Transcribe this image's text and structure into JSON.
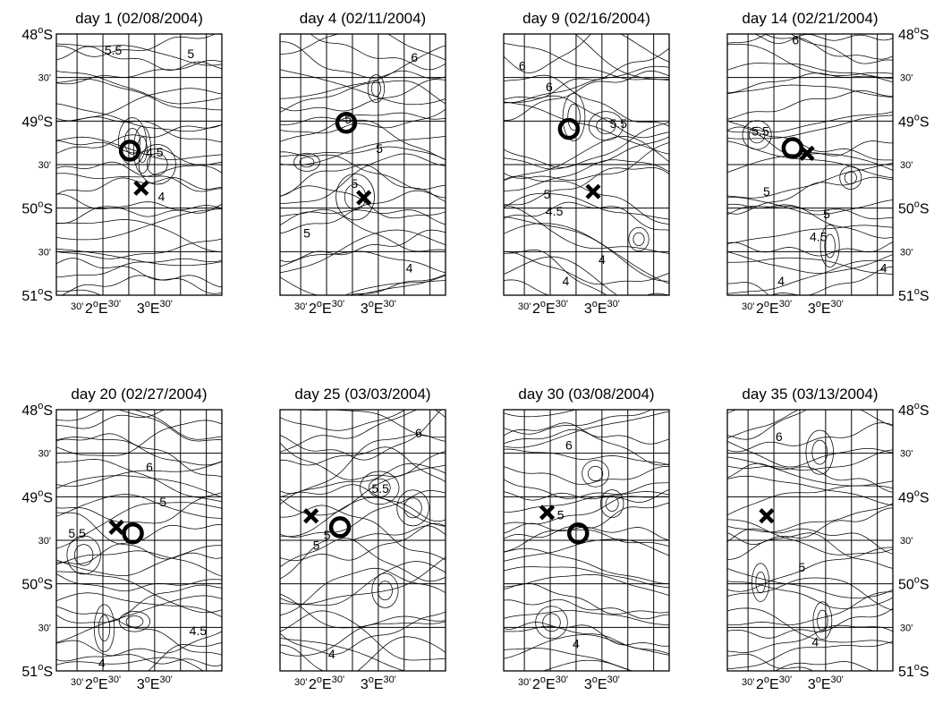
{
  "lat_labels": {
    "t48": "48",
    "m1": "30'",
    "t49": "49",
    "m2": "30'",
    "t50": "50",
    "m3": "30'",
    "t51": "51",
    "deg": "o",
    "hemi": "S"
  },
  "lon_labels": {
    "m1": "30'",
    "d2": "2",
    "deg": "o",
    "E": "E",
    "m2": "30'",
    "d3": "3",
    "m3": "30'"
  },
  "panels": [
    {
      "title": "day 1 (02/08/2004)",
      "circle": [
        2.52,
        -49.34
      ],
      "cross": [
        2.74,
        -49.77
      ],
      "labels": [
        {
          "text": "5.5",
          "pos": [
            2.2,
            -48.2
          ]
        },
        {
          "text": "5",
          "pos": [
            3.7,
            -48.24
          ]
        },
        {
          "text": "4.5",
          "pos": [
            3.0,
            -49.37
          ]
        },
        {
          "text": "4",
          "pos": [
            3.13,
            -49.88
          ]
        }
      ]
    },
    {
      "title": "day 4 (02/11/2004)",
      "circle": [
        2.38,
        -49.02
      ],
      "cross": [
        2.72,
        -49.88
      ],
      "labels": [
        {
          "text": "6",
          "pos": [
            3.7,
            -48.28
          ]
        },
        {
          "text": "5",
          "pos": [
            2.42,
            -48.99
          ]
        },
        {
          "text": "5",
          "pos": [
            3.02,
            -49.33
          ]
        },
        {
          "text": "5",
          "pos": [
            2.54,
            -49.73
          ]
        },
        {
          "text": "5",
          "pos": [
            1.62,
            -50.3
          ]
        },
        {
          "text": "4",
          "pos": [
            3.6,
            -50.7
          ]
        }
      ]
    },
    {
      "title": "day 9 (02/16/2004)",
      "circle": [
        2.36,
        -49.09
      ],
      "cross": [
        2.83,
        -49.81
      ],
      "labels": [
        {
          "text": "6",
          "pos": [
            1.46,
            -48.38
          ]
        },
        {
          "text": "6",
          "pos": [
            1.98,
            -48.62
          ]
        },
        {
          "text": "5.5",
          "pos": [
            3.32,
            -49.04
          ]
        },
        {
          "text": "5",
          "pos": [
            1.94,
            -49.85
          ]
        },
        {
          "text": "4.5",
          "pos": [
            2.08,
            -50.05
          ]
        },
        {
          "text": "4",
          "pos": [
            2.3,
            -50.85
          ]
        },
        {
          "text": "4",
          "pos": [
            3.0,
            -50.6
          ]
        }
      ]
    },
    {
      "title": "day 14 (02/21/2004)",
      "circle": [
        2.36,
        -49.31
      ],
      "cross": [
        2.64,
        -49.37
      ],
      "labels": [
        {
          "text": "6",
          "pos": [
            2.42,
            -48.08
          ]
        },
        {
          "text": "5.5",
          "pos": [
            1.74,
            -49.13
          ]
        },
        {
          "text": "5",
          "pos": [
            1.86,
            -49.82
          ]
        },
        {
          "text": "5",
          "pos": [
            3.02,
            -50.08
          ]
        },
        {
          "text": "4.5",
          "pos": [
            2.86,
            -50.34
          ]
        },
        {
          "text": "4",
          "pos": [
            2.14,
            -50.85
          ]
        },
        {
          "text": "4",
          "pos": [
            4.12,
            -50.7
          ]
        }
      ]
    },
    {
      "title": "day 20 (02/27/2004)",
      "circle": [
        2.58,
        -49.42
      ],
      "cross": [
        2.26,
        -49.35
      ],
      "labels": [
        {
          "text": "6",
          "pos": [
            2.9,
            -48.67
          ]
        },
        {
          "text": "5",
          "pos": [
            3.16,
            -49.07
          ]
        },
        {
          "text": "5.5",
          "pos": [
            1.5,
            -49.43
          ]
        },
        {
          "text": "4.5",
          "pos": [
            3.84,
            -50.55
          ]
        },
        {
          "text": "4",
          "pos": [
            1.98,
            -50.92
          ]
        }
      ]
    },
    {
      "title": "day 25 (03/03/2004)",
      "circle": [
        2.26,
        -49.35
      ],
      "cross": [
        1.7,
        -49.22
      ],
      "labels": [
        {
          "text": "6",
          "pos": [
            3.78,
            -48.28
          ]
        },
        {
          "text": "5.5",
          "pos": [
            3.04,
            -48.92
          ]
        },
        {
          "text": "5",
          "pos": [
            2.01,
            -49.45
          ]
        },
        {
          "text": "5",
          "pos": [
            1.8,
            -49.57
          ]
        },
        {
          "text": "4",
          "pos": [
            2.1,
            -50.82
          ]
        }
      ]
    },
    {
      "title": "day 30 (03/08/2004)",
      "circle": [
        2.54,
        -49.42
      ],
      "cross": [
        1.94,
        -49.18
      ],
      "labels": [
        {
          "text": "6",
          "pos": [
            2.36,
            -48.42
          ]
        },
        {
          "text": "5",
          "pos": [
            2.2,
            -49.22
          ]
        },
        {
          "text": "4",
          "pos": [
            2.5,
            -50.7
          ]
        }
      ]
    },
    {
      "title": "day 35 (03/13/2004)",
      "circle": null,
      "cross": [
        1.86,
        -49.22
      ],
      "labels": [
        {
          "text": "6",
          "pos": [
            2.1,
            -48.32
          ]
        },
        {
          "text": "5",
          "pos": [
            2.54,
            -49.82
          ]
        },
        {
          "text": "4",
          "pos": [
            2.8,
            -50.68
          ]
        }
      ]
    }
  ]
}
